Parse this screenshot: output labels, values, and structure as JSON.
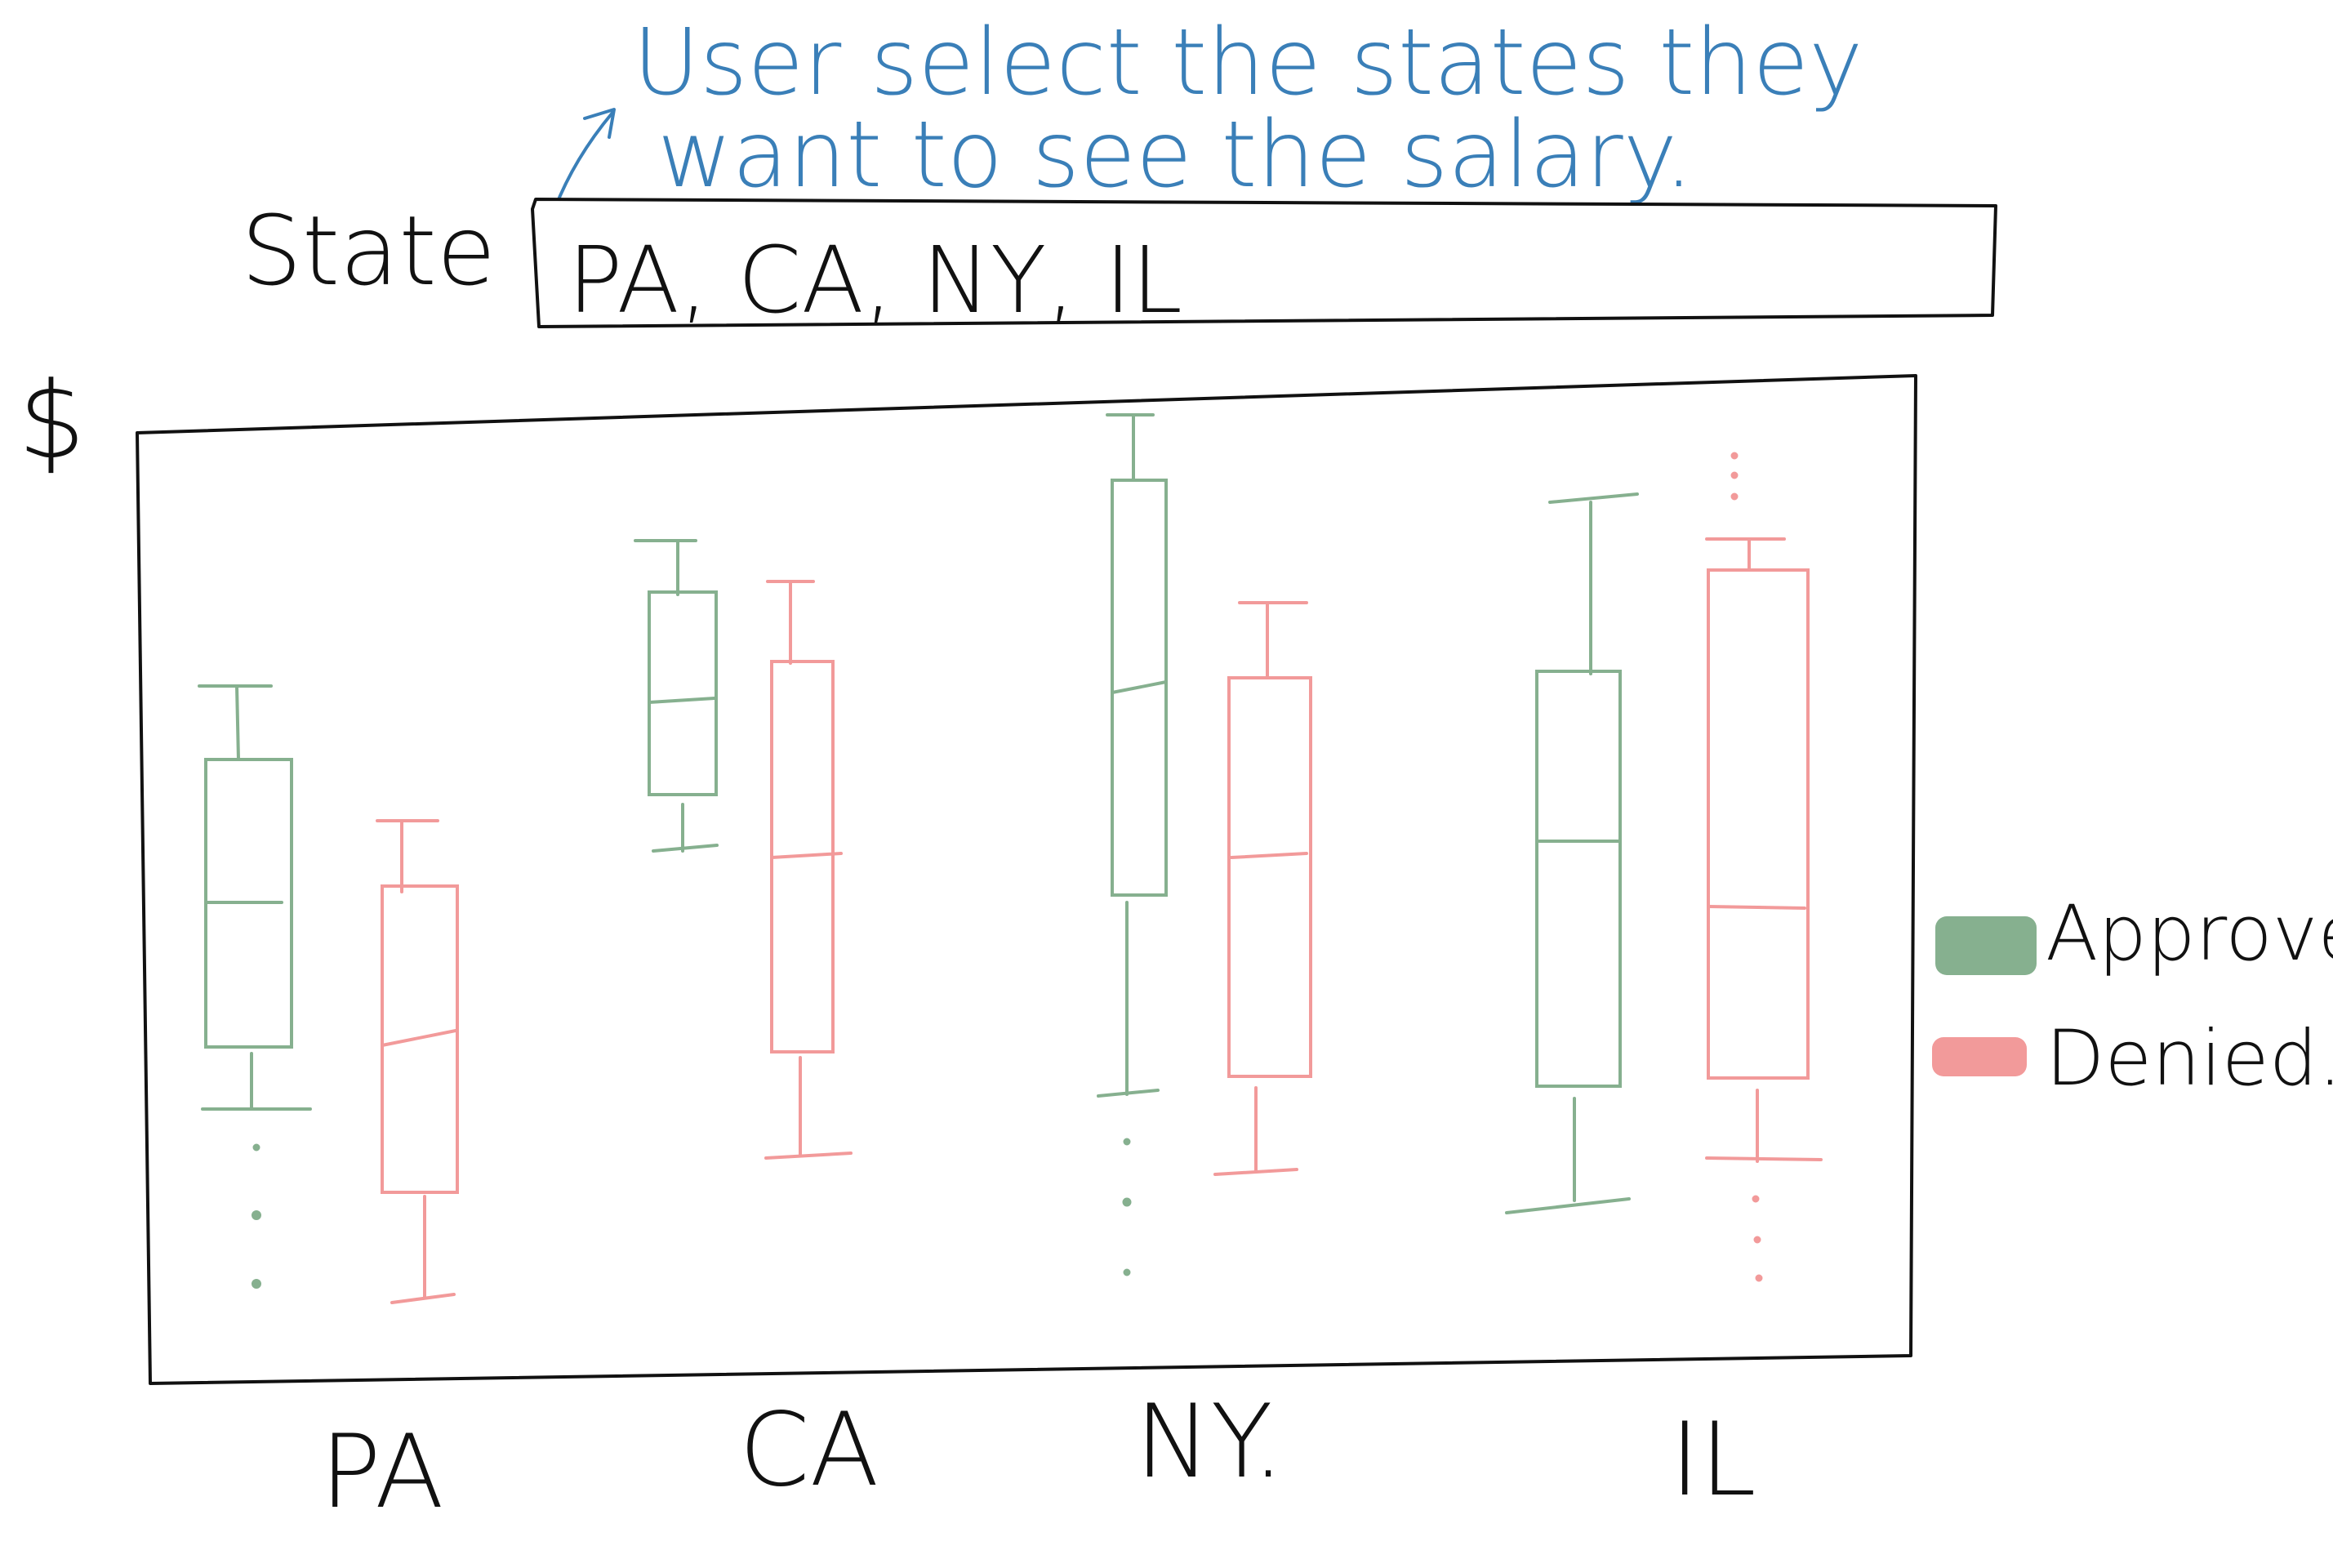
{
  "annotation": {
    "line1": "User select the states they",
    "line2": "want to see the salary."
  },
  "state_filter": {
    "label": "State",
    "value": "PA, CA, NY, IL"
  },
  "chart_data": {
    "type": "boxplot",
    "ylabel": "$",
    "categories": [
      "PA",
      "CA",
      "NY.",
      "IL"
    ],
    "legend": [
      "Approved",
      "Denied."
    ],
    "colors": {
      "Approved": "#86b08f",
      "Denied.": "#f29a9a",
      "annotation": "#3a7fb8"
    }
  }
}
